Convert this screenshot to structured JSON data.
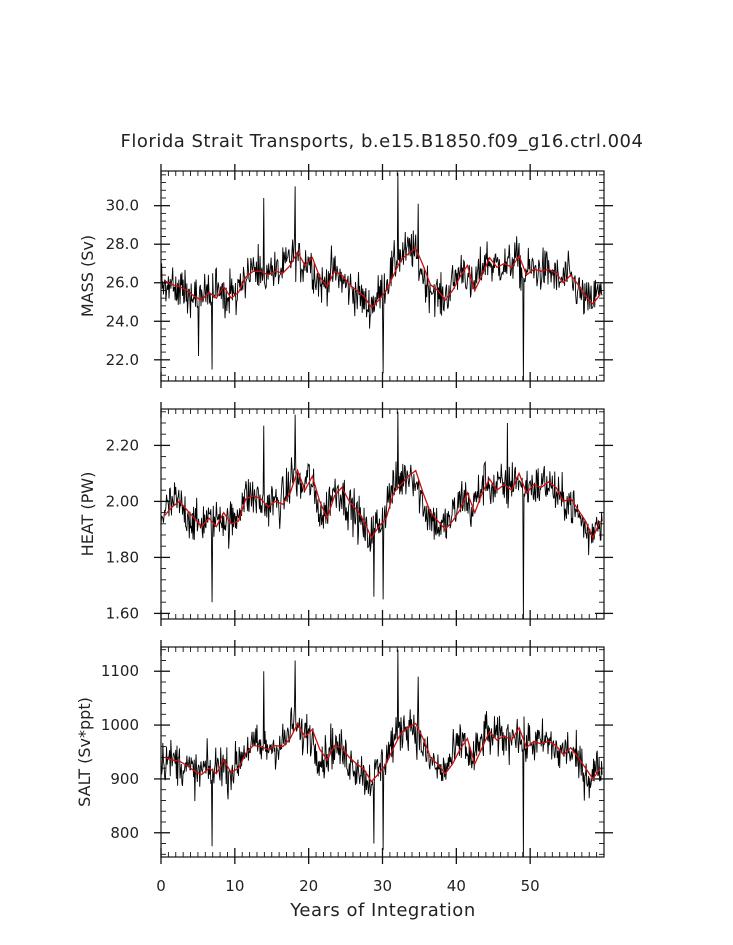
{
  "chart_data": {
    "type": "line",
    "title": "Florida Strait Transports, b.e15.B1850.f09_g16.ctrl.004",
    "xlabel": "Years of Integration",
    "xlim": [
      0,
      60
    ],
    "x_ticks": [
      0,
      10,
      20,
      30,
      40,
      50
    ],
    "x_tick_labels": [
      "0",
      "10",
      "20",
      "30",
      "40",
      "50"
    ],
    "series_colors": {
      "monthly": "#000000",
      "annual_smooth": "#cc1111"
    },
    "panels": [
      {
        "ylabel": "MASS (Sv)",
        "ylim": [
          20.9,
          31.8
        ],
        "y_ticks": [
          22.0,
          24.0,
          26.0,
          28.0,
          30.0
        ],
        "y_tick_labels": [
          "22.0",
          "24.0",
          "26.0",
          "28.0",
          "30.0"
        ],
        "smooth_x": [
          0,
          1,
          2,
          3,
          4,
          5,
          6,
          7,
          8,
          9,
          10,
          11,
          12,
          13,
          14,
          15,
          16,
          17,
          18,
          19,
          20,
          21,
          22,
          23,
          24,
          25,
          26,
          27,
          28,
          29,
          30,
          31,
          32,
          33,
          34,
          35,
          36,
          37,
          38,
          39,
          40,
          41,
          42,
          43,
          44,
          45,
          46,
          47,
          48,
          49,
          50,
          51,
          52,
          53,
          54,
          55,
          56,
          57,
          58,
          59
        ],
        "smooth_y": [
          26.1,
          25.9,
          25.8,
          25.6,
          25.3,
          25.1,
          25.5,
          25.2,
          25.8,
          25.2,
          25.5,
          26.3,
          26.6,
          26.6,
          26.4,
          26.6,
          26.5,
          26.9,
          27.6,
          26.9,
          27.3,
          26.3,
          25.8,
          26.6,
          26.4,
          25.9,
          25.6,
          25.3,
          24.7,
          25.1,
          25.6,
          26.4,
          27.2,
          27.5,
          27.8,
          26.9,
          25.9,
          25.6,
          25.1,
          25.6,
          26.3,
          26.9,
          25.6,
          26.4,
          27.3,
          26.8,
          27.0,
          26.8,
          27.4,
          26.4,
          26.7,
          26.6,
          26.7,
          26.5,
          26.0,
          26.4,
          25.9,
          25.3,
          24.9,
          25.4
        ],
        "noise_amp": 1.05,
        "spikes": [
          [
            18.2,
            31.0
          ],
          [
            32.1,
            31.7
          ],
          [
            49.1,
            20.9
          ],
          [
            6.9,
            21.5
          ],
          [
            30.1,
            21.3
          ],
          [
            5.1,
            22.2
          ],
          [
            13.9,
            30.4
          ],
          [
            34.8,
            30.1
          ]
        ]
      },
      {
        "ylabel": "HEAT (PW)",
        "ylim": [
          1.58,
          2.33
        ],
        "y_ticks": [
          1.6,
          1.8,
          2.0,
          2.2
        ],
        "y_tick_labels": [
          "1.60",
          "1.80",
          "2.00",
          "2.20"
        ],
        "smooth_x": [
          0,
          1,
          2,
          3,
          4,
          5,
          6,
          7,
          8,
          9,
          10,
          11,
          12,
          13,
          14,
          15,
          16,
          17,
          18,
          19,
          20,
          21,
          22,
          23,
          24,
          25,
          26,
          27,
          28,
          29,
          30,
          31,
          32,
          33,
          34,
          35,
          36,
          37,
          38,
          39,
          40,
          41,
          42,
          43,
          44,
          45,
          46,
          47,
          48,
          49,
          50,
          51,
          52,
          53,
          54,
          55,
          56,
          57,
          58,
          59
        ],
        "smooth_y": [
          1.95,
          1.98,
          2.0,
          1.97,
          1.94,
          1.91,
          1.94,
          1.91,
          1.96,
          1.92,
          1.93,
          2.01,
          2.02,
          2.01,
          1.98,
          2.0,
          1.99,
          2.03,
          2.11,
          2.04,
          2.09,
          2.0,
          1.94,
          2.02,
          2.05,
          2.0,
          1.97,
          1.93,
          1.87,
          1.91,
          1.94,
          2.03,
          2.06,
          2.09,
          2.11,
          2.03,
          1.96,
          1.93,
          1.9,
          1.93,
          1.97,
          2.03,
          1.96,
          2.03,
          2.08,
          2.04,
          2.06,
          2.04,
          2.1,
          2.03,
          2.06,
          2.05,
          2.07,
          2.05,
          2.0,
          2.01,
          1.97,
          1.93,
          1.87,
          1.93
        ],
        "noise_amp": 0.075,
        "spikes": [
          [
            18.2,
            2.31
          ],
          [
            32.1,
            2.32
          ],
          [
            49.1,
            1.58
          ],
          [
            6.9,
            1.64
          ],
          [
            30.1,
            1.65
          ],
          [
            28.8,
            1.66
          ],
          [
            13.9,
            2.27
          ],
          [
            46.9,
            2.28
          ]
        ]
      },
      {
        "ylabel": "SALT (Sv*ppt)",
        "ylim": [
          755,
          1145
        ],
        "y_ticks": [
          800,
          900,
          1000,
          1100
        ],
        "y_tick_labels": [
          "800",
          "900",
          "1000",
          "1100"
        ],
        "smooth_x": [
          0,
          1,
          2,
          3,
          4,
          5,
          6,
          7,
          8,
          9,
          10,
          11,
          12,
          13,
          14,
          15,
          16,
          17,
          18,
          19,
          20,
          21,
          22,
          23,
          24,
          25,
          26,
          27,
          28,
          29,
          30,
          31,
          32,
          33,
          34,
          35,
          36,
          37,
          38,
          39,
          40,
          41,
          42,
          43,
          44,
          45,
          46,
          47,
          48,
          49,
          50,
          51,
          52,
          53,
          54,
          55,
          56,
          57,
          58,
          59
        ],
        "smooth_y": [
          940,
          935,
          933,
          925,
          915,
          908,
          920,
          910,
          935,
          912,
          920,
          948,
          962,
          960,
          955,
          962,
          960,
          975,
          1003,
          978,
          992,
          955,
          935,
          962,
          958,
          940,
          928,
          918,
          895,
          910,
          928,
          958,
          985,
          996,
          1003,
          975,
          940,
          927,
          910,
          928,
          955,
          975,
          928,
          958,
          988,
          972,
          980,
          972,
          995,
          958,
          970,
          965,
          970,
          962,
          945,
          958,
          940,
          920,
          900,
          920
        ],
        "noise_amp": 38,
        "spikes": [
          [
            18.2,
            1120
          ],
          [
            32.1,
            1140
          ],
          [
            49.1,
            755
          ],
          [
            6.9,
            775
          ],
          [
            30.1,
            768
          ],
          [
            28.8,
            780
          ],
          [
            13.9,
            1100
          ],
          [
            34.8,
            1090
          ]
        ]
      }
    ]
  }
}
